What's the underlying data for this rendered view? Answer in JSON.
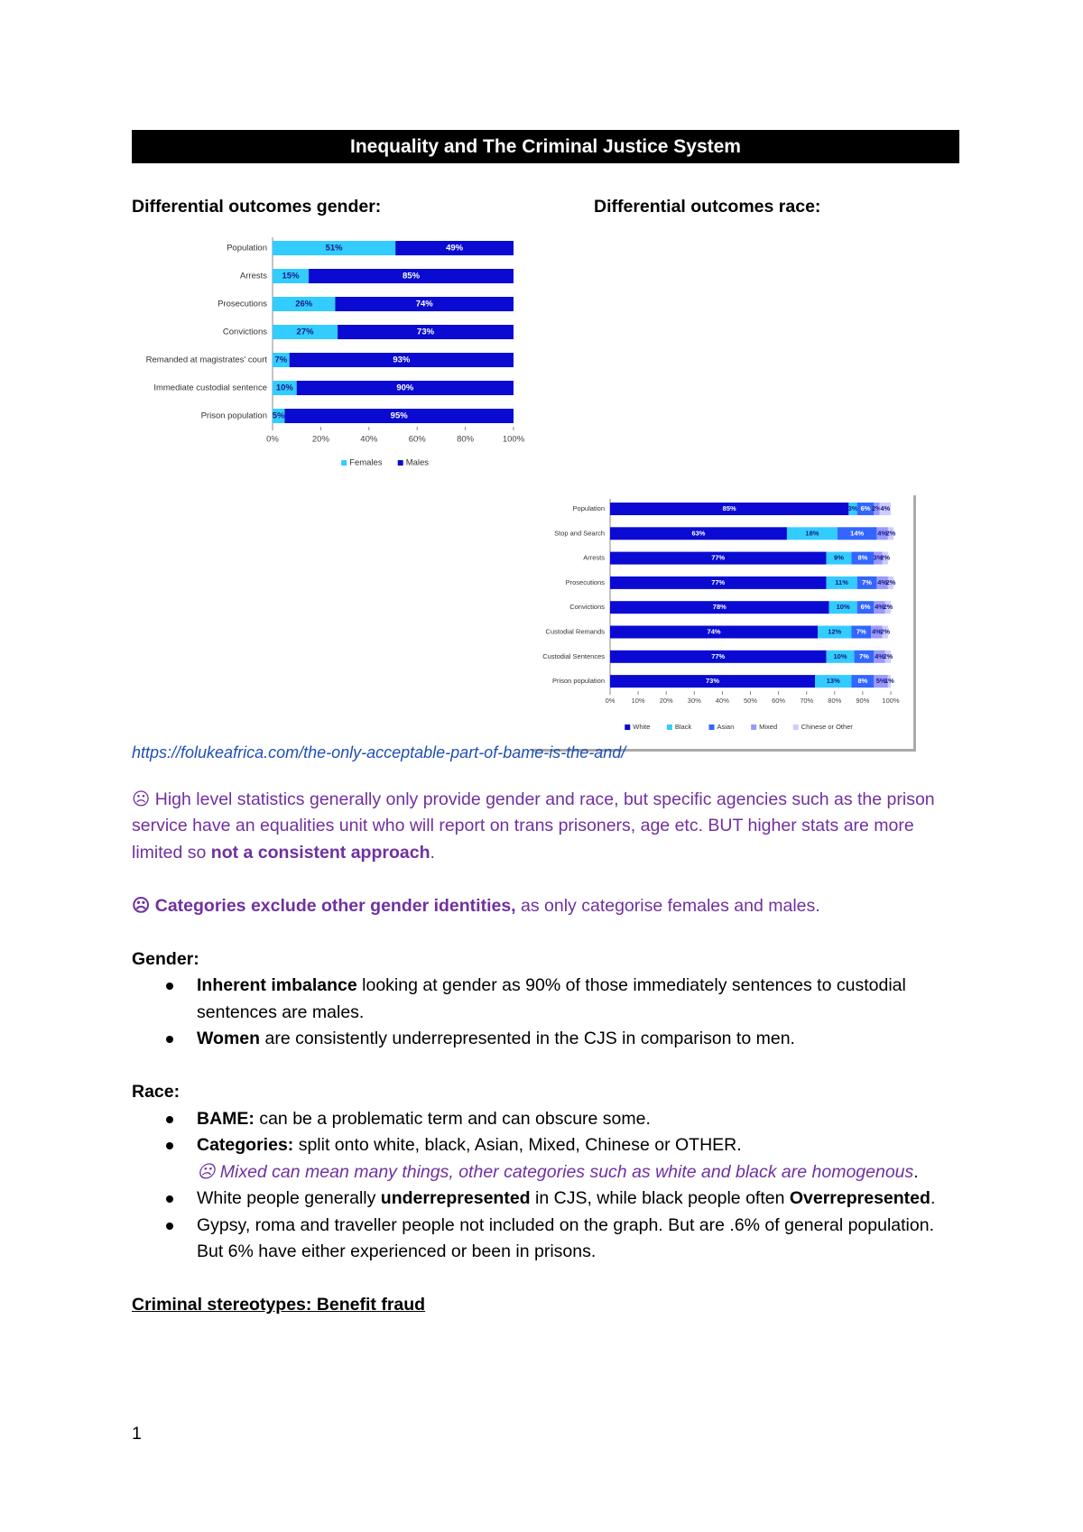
{
  "header": {
    "title": "Inequality and The Criminal Justice System"
  },
  "headings": {
    "gender": "Differential outcomes gender:",
    "race": "Differential outcomes race:"
  },
  "chart_data": [
    {
      "type": "bar",
      "orientation": "horizontal",
      "stacked": true,
      "categories": [
        "Population",
        "Arrests",
        "Prosecutions",
        "Convictions",
        "Remanded at magistrates' court",
        "Immediate custodial sentence",
        "Prison population"
      ],
      "series": [
        {
          "name": "Females",
          "color": "#33ccff",
          "values": [
            51,
            15,
            26,
            27,
            7,
            10,
            5
          ],
          "value_labels": [
            "51%",
            "15%",
            "26%",
            "27%",
            "7%",
            "10%",
            "5%"
          ]
        },
        {
          "name": "Males",
          "color": "#0a0ad2",
          "values": [
            49,
            85,
            74,
            73,
            93,
            90,
            95
          ],
          "value_labels": [
            "49%",
            "85%",
            "74%",
            "73%",
            "93%",
            "90%",
            "95%"
          ]
        }
      ],
      "xlim": [
        0,
        100
      ],
      "xticks": [
        {
          "value": 0,
          "label": "0%"
        },
        {
          "value": 20,
          "label": "20%"
        },
        {
          "value": 40,
          "label": "40%"
        },
        {
          "value": 60,
          "label": "60%"
        },
        {
          "value": 80,
          "label": "80%"
        },
        {
          "value": 100,
          "label": "100%"
        }
      ],
      "legend": "bottom"
    },
    {
      "type": "bar",
      "orientation": "horizontal",
      "stacked": true,
      "categories": [
        "Population",
        "Stop and Search",
        "Arrests",
        "Prosecutions",
        "Convictions",
        "Custodial Remands",
        "Custodial Sentences",
        "Prison population"
      ],
      "series": [
        {
          "name": "White",
          "color": "#0a0ad2",
          "values": [
            85,
            63,
            77,
            77,
            78,
            74,
            77,
            73
          ],
          "value_labels": [
            "85%",
            "63%",
            "77%",
            "77%",
            "78%",
            "74%",
            "77%",
            "73%"
          ]
        },
        {
          "name": "Black",
          "color": "#33ccff",
          "values": [
            3,
            18,
            9,
            11,
            10,
            12,
            10,
            13
          ],
          "value_labels": [
            "3%",
            "18%",
            "9%",
            "11%",
            "10%",
            "12%",
            "10%",
            "13%"
          ]
        },
        {
          "name": "Asian",
          "color": "#3366ff",
          "values": [
            6,
            14,
            8,
            7,
            6,
            7,
            7,
            8
          ],
          "value_labels": [
            "6%",
            "14%",
            "8%",
            "7%",
            "6%",
            "7%",
            "7%",
            "8%"
          ]
        },
        {
          "name": "Mixed",
          "color": "#9999ff",
          "values": [
            2,
            4,
            3,
            4,
            4,
            4,
            4,
            5
          ],
          "value_labels": [
            "2%",
            "4%",
            "3%",
            "4%",
            "4%",
            "4%",
            "4%",
            "5%"
          ]
        },
        {
          "name": "Chinese or Other",
          "color": "#ccccff",
          "values": [
            4,
            2,
            2,
            2,
            2,
            2,
            2,
            1
          ],
          "value_labels": [
            "4%",
            "2%",
            "2%",
            "2%",
            "2%",
            "2%",
            "2%",
            "1%"
          ]
        }
      ],
      "xlim": [
        0,
        100
      ],
      "xticks": [
        {
          "value": 0,
          "label": "0%"
        },
        {
          "value": 10,
          "label": "10%"
        },
        {
          "value": 20,
          "label": "20%"
        },
        {
          "value": 30,
          "label": "30%"
        },
        {
          "value": 40,
          "label": "40%"
        },
        {
          "value": 50,
          "label": "50%"
        },
        {
          "value": 60,
          "label": "60%"
        },
        {
          "value": 70,
          "label": "70%"
        },
        {
          "value": 80,
          "label": "80%"
        },
        {
          "value": 90,
          "label": "90%"
        },
        {
          "value": 100,
          "label": "100%"
        }
      ],
      "legend": "bottom"
    }
  ],
  "body": {
    "link": "https://folukeafrica.com/the-only-acceptable-part-of-bame-is-the-and/",
    "note1": [
      "☹ High level statistics generally only provide gender and race, but specific agencies such as the prison service have an equalities unit who will report on trans prisoners, age etc. BUT higher stats are more limited so ",
      "not a consistent approach",
      "."
    ],
    "note2": [
      "☹ Categories exclude other gender identities,",
      " as only categorise females and males."
    ],
    "gender_heading": "Gender:",
    "gender_bullets": [
      [
        "Inherent imbalance",
        " looking at gender as 90% of those immediately sentences to custodial sentences are males."
      ],
      [
        "Women",
        " are consistently underrepresented in the CJS in comparison to men."
      ]
    ],
    "race_heading": "Race:",
    "race_bullets": [
      [
        "BAME:",
        " can be a problematic term and can obscure some."
      ],
      [
        "Categories:",
        " split onto white, black, Asian, Mixed, Chinese or OTHER.",
        "☹ Mixed can mean many things, other categories such as white and black are homogenous",
        "."
      ],
      [
        "White people generally ",
        "underrepresented",
        " in CJS, while black people often ",
        "Overrepresented",
        "."
      ],
      [
        "Gypsy, roma and traveller people not included on the graph. But are .6% of general population. But 6% have either experienced or been in prisons."
      ]
    ],
    "final_heading": "Criminal stereotypes: Benefit fraud"
  },
  "footer": {
    "page_number": "1"
  }
}
